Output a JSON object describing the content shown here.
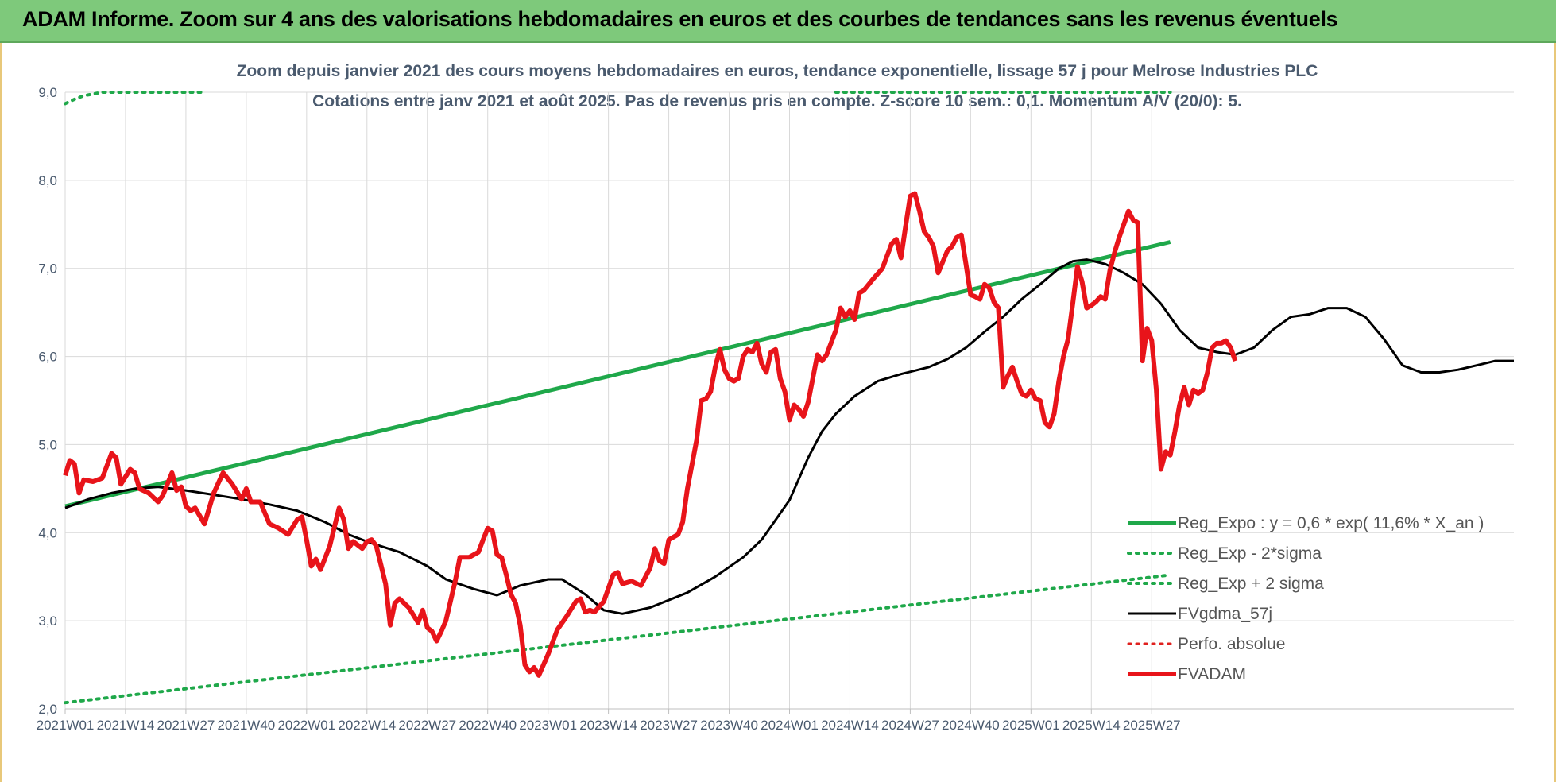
{
  "banner": {
    "title": "ADAM Informe. Zoom sur 4 ans des valorisations hebdomadaires en euros et des courbes de tendances sans les revenus éventuels"
  },
  "chart_data": {
    "type": "line",
    "title_line1": "Zoom depuis janvier 2021 des cours moyens hebdomadaires en euros, tendance exponentielle, lissage 57 j pour Melrose Industries PLC",
    "title_line2": "Cotations entre janv 2021 et août 2025.  Pas de revenus pris en compte. Z-score 10 sem.: 0,1. Momentum A/V (20/0): 5.",
    "ylim": [
      2.0,
      9.0
    ],
    "yticks": [
      "2,0",
      "3,0",
      "4,0",
      "5,0",
      "6,0",
      "7,0",
      "8,0",
      "9,0"
    ],
    "grid": true,
    "legend_position": "bottom-right",
    "x_labels": [
      "2021W01",
      "2021W14",
      "2021W27",
      "2021W40",
      "2022W01",
      "2022W14",
      "2022W27",
      "2022W40",
      "2023W01",
      "2023W14",
      "2023W27",
      "2023W40",
      "2024W01",
      "2024W14",
      "2024W27",
      "2024W40",
      "2025W01",
      "2025W14",
      "2025W27"
    ],
    "x_range_weeks": [
      0,
      238
    ],
    "series": [
      {
        "name": "Reg_Expo : y = 0,6 * exp( 11,6% *  X_an )",
        "color": "#1fa84a",
        "style": "solid",
        "width": 5,
        "points": [
          [
            0,
            4.3
          ],
          [
            238,
            7.3
          ]
        ]
      },
      {
        "name": "Reg_Exp - 2*sigma",
        "color": "#1fa84a",
        "style": "dotted",
        "width": 4,
        "points": [
          [
            0,
            2.07
          ],
          [
            238,
            3.52
          ]
        ]
      },
      {
        "name": "Reg_Exp + 2 sigma",
        "color": "#1fa84a",
        "style": "dotted",
        "width": 4,
        "points": [
          [
            0,
            8.87
          ],
          [
            2,
            8.92
          ],
          [
            4,
            8.96
          ],
          [
            8,
            9.0
          ],
          [
            30,
            9.0
          ]
        ],
        "points2": [
          [
            166,
            9.0
          ],
          [
            238,
            9.0
          ]
        ]
      },
      {
        "name": "FVgdma_57j",
        "color": "#000000",
        "style": "solid",
        "width": 3,
        "points": [
          [
            0,
            4.28
          ],
          [
            5,
            4.38
          ],
          [
            10,
            4.45
          ],
          [
            15,
            4.5
          ],
          [
            20,
            4.52
          ],
          [
            26,
            4.48
          ],
          [
            32,
            4.43
          ],
          [
            38,
            4.38
          ],
          [
            44,
            4.32
          ],
          [
            50,
            4.25
          ],
          [
            56,
            4.12
          ],
          [
            61,
            3.98
          ],
          [
            66,
            3.88
          ],
          [
            72,
            3.78
          ],
          [
            78,
            3.62
          ],
          [
            82,
            3.47
          ],
          [
            88,
            3.36
          ],
          [
            93,
            3.29
          ],
          [
            98,
            3.4
          ],
          [
            104,
            3.47
          ],
          [
            107,
            3.47
          ],
          [
            112,
            3.3
          ],
          [
            116,
            3.12
          ],
          [
            120,
            3.08
          ],
          [
            126,
            3.15
          ],
          [
            134,
            3.32
          ],
          [
            140,
            3.5
          ],
          [
            146,
            3.72
          ],
          [
            150,
            3.92
          ],
          [
            156,
            4.37
          ],
          [
            160,
            4.85
          ],
          [
            163,
            5.15
          ],
          [
            166,
            5.35
          ],
          [
            170,
            5.55
          ],
          [
            175,
            5.72
          ],
          [
            180,
            5.8
          ],
          [
            186,
            5.88
          ],
          [
            190,
            5.97
          ],
          [
            194,
            6.1
          ],
          [
            198,
            6.28
          ],
          [
            202,
            6.45
          ],
          [
            206,
            6.65
          ],
          [
            210,
            6.82
          ],
          [
            214,
            7.0
          ],
          [
            217,
            7.08
          ],
          [
            220,
            7.1
          ],
          [
            224,
            7.05
          ],
          [
            228,
            6.95
          ],
          [
            232,
            6.82
          ],
          [
            236,
            6.6
          ]
        ],
        "points_cont": [
          [
            236,
            6.6
          ],
          [
            240,
            6.3
          ],
          [
            244,
            6.1
          ],
          [
            248,
            6.05
          ],
          [
            252,
            6.02
          ],
          [
            256,
            6.1
          ],
          [
            260,
            6.3
          ],
          [
            264,
            6.45
          ],
          [
            268,
            6.48
          ],
          [
            272,
            6.55
          ],
          [
            276,
            6.55
          ],
          [
            280,
            6.45
          ],
          [
            284,
            6.2
          ],
          [
            288,
            5.9
          ],
          [
            292,
            5.82
          ],
          [
            296,
            5.82
          ],
          [
            300,
            5.85
          ],
          [
            304,
            5.9
          ],
          [
            308,
            5.95
          ],
          [
            312,
            5.95
          ]
        ]
      },
      {
        "name": "Perfo. absolue",
        "color": "#e0201e",
        "style": "dotted",
        "width": 3,
        "points": []
      },
      {
        "name": "FVADAM",
        "color": "#e8141a",
        "style": "solid",
        "width": 6,
        "points": [
          [
            0,
            4.65
          ],
          [
            1,
            4.82
          ],
          [
            2,
            4.78
          ],
          [
            3,
            4.45
          ],
          [
            4,
            4.6
          ],
          [
            6,
            4.58
          ],
          [
            8,
            4.62
          ],
          [
            10,
            4.9
          ],
          [
            11,
            4.85
          ],
          [
            12,
            4.55
          ],
          [
            14,
            4.72
          ],
          [
            15,
            4.68
          ],
          [
            16,
            4.5
          ],
          [
            18,
            4.45
          ],
          [
            20,
            4.35
          ],
          [
            21,
            4.42
          ],
          [
            23,
            4.68
          ],
          [
            24,
            4.48
          ],
          [
            25,
            4.52
          ],
          [
            26,
            4.3
          ],
          [
            27,
            4.25
          ],
          [
            28,
            4.28
          ],
          [
            30,
            4.1
          ],
          [
            32,
            4.45
          ],
          [
            34,
            4.68
          ],
          [
            36,
            4.55
          ],
          [
            38,
            4.38
          ],
          [
            39,
            4.5
          ],
          [
            40,
            4.35
          ],
          [
            42,
            4.35
          ],
          [
            44,
            4.1
          ],
          [
            46,
            4.05
          ],
          [
            48,
            3.98
          ],
          [
            50,
            4.15
          ],
          [
            51,
            4.18
          ],
          [
            52,
            3.92
          ],
          [
            53,
            3.62
          ],
          [
            54,
            3.7
          ],
          [
            55,
            3.58
          ],
          [
            57,
            3.85
          ],
          [
            59,
            4.28
          ],
          [
            60,
            4.15
          ],
          [
            61,
            3.82
          ],
          [
            62,
            3.9
          ],
          [
            64,
            3.82
          ],
          [
            65,
            3.9
          ],
          [
            66,
            3.92
          ],
          [
            67,
            3.85
          ],
          [
            69,
            3.42
          ],
          [
            70,
            2.95
          ],
          [
            71,
            3.2
          ],
          [
            72,
            3.25
          ],
          [
            74,
            3.15
          ],
          [
            76,
            2.98
          ],
          [
            77,
            3.12
          ],
          [
            78,
            2.92
          ],
          [
            79,
            2.88
          ],
          [
            80,
            2.77
          ],
          [
            81,
            2.88
          ],
          [
            82,
            3.0
          ],
          [
            84,
            3.45
          ],
          [
            85,
            3.72
          ],
          [
            87,
            3.72
          ],
          [
            89,
            3.78
          ],
          [
            90,
            3.92
          ],
          [
            91,
            4.05
          ],
          [
            92,
            4.02
          ],
          [
            93,
            3.75
          ],
          [
            94,
            3.72
          ],
          [
            95,
            3.52
          ],
          [
            96,
            3.3
          ],
          [
            97,
            3.2
          ],
          [
            98,
            2.95
          ],
          [
            99,
            2.5
          ],
          [
            100,
            2.42
          ],
          [
            101,
            2.47
          ],
          [
            102,
            2.38
          ],
          [
            104,
            2.62
          ],
          [
            106,
            2.9
          ],
          [
            108,
            3.05
          ],
          [
            110,
            3.22
          ],
          [
            111,
            3.25
          ],
          [
            112,
            3.1
          ],
          [
            113,
            3.12
          ],
          [
            114,
            3.1
          ],
          [
            116,
            3.22
          ],
          [
            118,
            3.52
          ],
          [
            119,
            3.55
          ],
          [
            120,
            3.42
          ],
          [
            122,
            3.45
          ],
          [
            124,
            3.4
          ],
          [
            126,
            3.6
          ],
          [
            127,
            3.82
          ],
          [
            128,
            3.68
          ],
          [
            129,
            3.65
          ],
          [
            130,
            3.92
          ],
          [
            132,
            3.98
          ],
          [
            133,
            4.12
          ],
          [
            134,
            4.5
          ],
          [
            136,
            5.05
          ],
          [
            137,
            5.5
          ],
          [
            138,
            5.52
          ],
          [
            139,
            5.6
          ],
          [
            140,
            5.88
          ],
          [
            141,
            6.08
          ],
          [
            142,
            5.85
          ],
          [
            143,
            5.75
          ],
          [
            144,
            5.72
          ],
          [
            145,
            5.75
          ],
          [
            146,
            6.0
          ],
          [
            147,
            6.08
          ],
          [
            148,
            6.05
          ],
          [
            149,
            6.15
          ],
          [
            150,
            5.92
          ],
          [
            151,
            5.82
          ],
          [
            152,
            6.05
          ],
          [
            153,
            6.08
          ],
          [
            154,
            5.75
          ],
          [
            155,
            5.6
          ],
          [
            156,
            5.28
          ],
          [
            157,
            5.45
          ],
          [
            158,
            5.4
          ],
          [
            159,
            5.32
          ],
          [
            160,
            5.48
          ],
          [
            162,
            6.02
          ],
          [
            163,
            5.95
          ],
          [
            164,
            6.02
          ],
          [
            166,
            6.3
          ],
          [
            167,
            6.55
          ],
          [
            168,
            6.45
          ],
          [
            169,
            6.52
          ],
          [
            170,
            6.42
          ],
          [
            171,
            6.72
          ],
          [
            172,
            6.75
          ],
          [
            174,
            6.88
          ],
          [
            176,
            7.0
          ],
          [
            178,
            7.28
          ],
          [
            179,
            7.33
          ],
          [
            180,
            7.12
          ],
          [
            181,
            7.48
          ],
          [
            182,
            7.82
          ],
          [
            183,
            7.85
          ],
          [
            184,
            7.65
          ],
          [
            185,
            7.42
          ],
          [
            186,
            7.35
          ],
          [
            187,
            7.25
          ],
          [
            188,
            6.95
          ],
          [
            190,
            7.2
          ],
          [
            191,
            7.25
          ],
          [
            192,
            7.35
          ],
          [
            193,
            7.38
          ],
          [
            194,
            7.05
          ],
          [
            195,
            6.7
          ],
          [
            196,
            6.68
          ],
          [
            197,
            6.65
          ],
          [
            198,
            6.82
          ],
          [
            199,
            6.78
          ],
          [
            200,
            6.62
          ],
          [
            201,
            6.55
          ],
          [
            202,
            5.65
          ],
          [
            203,
            5.78
          ],
          [
            204,
            5.88
          ],
          [
            205,
            5.72
          ],
          [
            206,
            5.58
          ],
          [
            207,
            5.55
          ],
          [
            208,
            5.62
          ],
          [
            209,
            5.52
          ],
          [
            210,
            5.5
          ],
          [
            211,
            5.25
          ],
          [
            212,
            5.2
          ],
          [
            213,
            5.35
          ],
          [
            214,
            5.72
          ],
          [
            215,
            6.0
          ],
          [
            216,
            6.2
          ],
          [
            217,
            6.6
          ],
          [
            218,
            7.02
          ],
          [
            219,
            6.85
          ],
          [
            220,
            6.55
          ],
          [
            221,
            6.58
          ],
          [
            222,
            6.62
          ],
          [
            223,
            6.68
          ],
          [
            224,
            6.65
          ],
          [
            225,
            6.98
          ],
          [
            226,
            7.18
          ],
          [
            227,
            7.35
          ],
          [
            228,
            7.5
          ],
          [
            229,
            7.65
          ],
          [
            230,
            7.55
          ],
          [
            231,
            7.52
          ],
          [
            232,
            5.95
          ],
          [
            233,
            6.32
          ],
          [
            234,
            6.18
          ],
          [
            235,
            5.62
          ],
          [
            236,
            4.72
          ],
          [
            237,
            4.92
          ],
          [
            238,
            4.88
          ],
          [
            239,
            5.15
          ],
          [
            240,
            5.45
          ],
          [
            241,
            5.65
          ],
          [
            242,
            5.45
          ],
          [
            243,
            5.62
          ],
          [
            244,
            5.58
          ],
          [
            245,
            5.62
          ],
          [
            246,
            5.82
          ],
          [
            247,
            6.1
          ],
          [
            248,
            6.15
          ],
          [
            249,
            6.15
          ],
          [
            250,
            6.18
          ],
          [
            251,
            6.1
          ],
          [
            252,
            5.95
          ]
        ]
      }
    ]
  }
}
